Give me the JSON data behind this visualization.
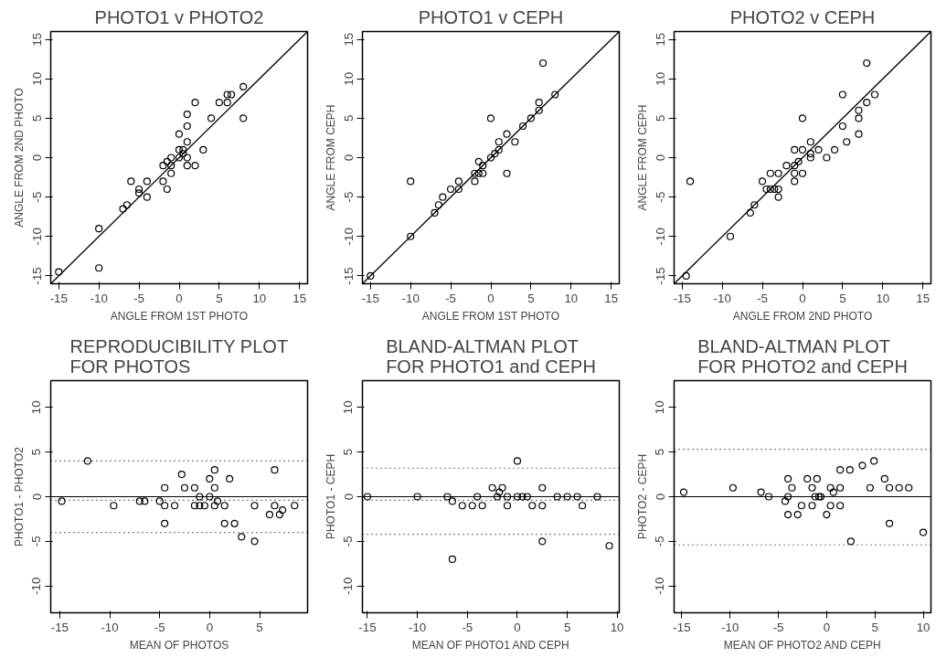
{
  "chart_data": [
    {
      "type": "scatter",
      "title": "PHOTO1 v PHOTO2",
      "xlabel": "ANGLE FROM 1ST PHOTO",
      "ylabel": "ANGLE FROM 2ND PHOTO",
      "xlim": [
        -16,
        16
      ],
      "ylim": [
        -16,
        16
      ],
      "xticks": [
        -15,
        -10,
        -5,
        0,
        5,
        10,
        15
      ],
      "yticks": [
        -15,
        -10,
        -5,
        0,
        5,
        10,
        15
      ],
      "series": [
        {
          "marker": "circle",
          "color": "#000000",
          "x": [
            -15,
            -10,
            -10,
            -7,
            -6.5,
            -6,
            -5,
            -5,
            -4,
            -4,
            -2,
            -2,
            -1.5,
            -1.5,
            -1,
            -1,
            -1,
            0,
            0,
            0,
            0.5,
            0.5,
            1,
            1,
            1,
            1,
            1,
            2,
            2,
            3,
            4,
            5,
            6,
            6,
            6.5,
            8,
            8
          ],
          "values": [
            -14.5,
            -9,
            -14,
            -6.5,
            -6,
            -3,
            -4,
            -4.5,
            -3,
            -5,
            -1,
            -3,
            -4,
            -0.5,
            0,
            -1,
            -2,
            3,
            1,
            0,
            1,
            0.5,
            5.5,
            4,
            2,
            0,
            -1,
            7,
            -1,
            1,
            5,
            7,
            8,
            7,
            8,
            9,
            5
          ]
        },
        {
          "type": "line",
          "marker": "none",
          "color": "#000000",
          "x": [
            -16,
            16
          ],
          "values": [
            -16,
            16
          ]
        }
      ]
    },
    {
      "type": "scatter",
      "title": "PHOTO1 v CEPH",
      "xlabel": "ANGLE FROM 1ST PHOTO",
      "ylabel": "ANGLE FROM CEPH",
      "xlim": [
        -16,
        16
      ],
      "ylim": [
        -16,
        16
      ],
      "xticks": [
        -15,
        -10,
        -5,
        0,
        5,
        10,
        15
      ],
      "yticks": [
        -15,
        -10,
        -5,
        0,
        5,
        10,
        15
      ],
      "series": [
        {
          "marker": "circle",
          "color": "#000000",
          "x": [
            -15,
            -10,
            -10,
            -7,
            -6.5,
            -6,
            -5,
            -4,
            -4,
            -2,
            -2,
            -1.5,
            -1.5,
            -1,
            -1,
            0,
            0,
            0.5,
            1,
            1,
            2,
            2,
            3,
            4,
            5,
            6,
            6,
            6.5,
            8
          ],
          "values": [
            -15,
            -3,
            -10,
            -7,
            -6,
            -5,
            -4,
            -3,
            -4,
            -2,
            -3,
            -0.5,
            -2,
            -2,
            -1,
            5,
            0,
            0.5,
            2,
            1,
            3,
            -2,
            2,
            4,
            5,
            6,
            7,
            12,
            8
          ]
        },
        {
          "type": "line",
          "marker": "none",
          "color": "#000000",
          "x": [
            -16,
            16
          ],
          "values": [
            -16,
            16
          ]
        }
      ]
    },
    {
      "type": "scatter",
      "title": "PHOTO2 v CEPH",
      "xlabel": "ANGLE FROM 2ND PHOTO",
      "ylabel": "ANGLE FROM CEPH",
      "xlim": [
        -16,
        16
      ],
      "ylim": [
        -16,
        16
      ],
      "xticks": [
        -15,
        -10,
        -5,
        0,
        5,
        10,
        15
      ],
      "yticks": [
        -15,
        -10,
        -5,
        0,
        5,
        10,
        15
      ],
      "series": [
        {
          "marker": "circle",
          "color": "#000000",
          "x": [
            -14.5,
            -14,
            -9,
            -6.5,
            -6,
            -5,
            -4.5,
            -4,
            -4,
            -3.5,
            -3,
            -3,
            -3,
            -2,
            -1,
            -1,
            -1,
            -1,
            -0.5,
            0,
            0,
            0,
            1,
            1,
            1,
            2,
            3,
            4,
            5,
            5,
            5.5,
            7,
            7,
            7,
            8,
            8,
            9
          ],
          "values": [
            -15,
            -3,
            -10,
            -7,
            -6,
            -3,
            -4,
            -4,
            -2,
            -4,
            -2,
            -4,
            -5,
            -1,
            1,
            -1,
            -2,
            -3,
            -0.5,
            5,
            1,
            -2,
            2,
            0.5,
            0,
            1,
            0,
            1,
            8,
            4,
            2,
            6,
            5,
            3,
            12,
            7,
            8
          ]
        },
        {
          "type": "line",
          "marker": "none",
          "color": "#000000",
          "x": [
            -16,
            16
          ],
          "values": [
            -16,
            16
          ]
        }
      ]
    },
    {
      "type": "scatter",
      "title": "REPRODUCIBILITY PLOT\nFOR PHOTOS",
      "xlabel": "MEAN OF PHOTOS",
      "ylabel": "PHOTO1 - PHOTO2",
      "xlim": [
        -15.9,
        9.8
      ],
      "ylim": [
        -13,
        13
      ],
      "xticks": [
        -15,
        -10,
        -5,
        0,
        5
      ],
      "yticks": [
        -10,
        -5,
        0,
        5,
        10
      ],
      "marker": "circle",
      "series": [
        {
          "color": "#000000",
          "x": [
            -14.8,
            -12.2,
            -9.6,
            -7,
            -6.5,
            -5,
            -4.5,
            -4.5,
            -4.5,
            -3.5,
            -2.8,
            -2.5,
            -1.5,
            -1.5,
            -1,
            -1,
            -0.5,
            0,
            0,
            0.5,
            0.5,
            0.5,
            0.8,
            1.5,
            1.5,
            2,
            2.5,
            3.2,
            4.5,
            4.5,
            6,
            6.5,
            6.5,
            7,
            7.3,
            8.5
          ],
          "values": [
            -0.5,
            4,
            -1,
            -0.5,
            -0.5,
            -0.5,
            1,
            -1,
            -3,
            -1,
            2.5,
            1,
            1,
            -1,
            0,
            -1,
            -1,
            2,
            0,
            3,
            1,
            -1,
            -0.5,
            -1,
            -3,
            2,
            -3,
            -4.5,
            -1,
            -5,
            -2,
            3,
            -1,
            -2,
            -1.5,
            -1
          ]
        }
      ],
      "ref_lines": [
        {
          "axis": "y",
          "value": 0,
          "line_style": "solid",
          "color": "#000000"
        },
        {
          "axis": "y",
          "value": 4,
          "line_style": "dotted",
          "color": "#000000"
        },
        {
          "axis": "y",
          "value": -0.4,
          "line_style": "dotted",
          "color": "#000000"
        },
        {
          "axis": "y",
          "value": -4,
          "line_style": "dotted",
          "color": "#000000"
        }
      ]
    },
    {
      "type": "scatter",
      "title": "BLAND-ALTMAN PLOT\nFOR PHOTO1 and CEPH",
      "xlabel": "MEAN OF PHOTO1 AND CEPH",
      "ylabel": "PHOTO1 - CEPH",
      "xlim": [
        -15.5,
        10.2
      ],
      "ylim": [
        -13,
        13
      ],
      "xticks": [
        -15,
        -10,
        -5,
        0,
        5,
        10
      ],
      "yticks": [
        -10,
        -5,
        0,
        5,
        10
      ],
      "marker": "circle",
      "series": [
        {
          "color": "#000000",
          "x": [
            -15,
            -10,
            -7,
            -6.5,
            -6.5,
            -5.5,
            -4.5,
            -4,
            -3.5,
            -2.5,
            -2,
            -1.8,
            -1.5,
            -1,
            -1,
            0,
            0,
            0.5,
            1,
            1.5,
            2.5,
            2.5,
            2.5,
            4,
            5,
            6,
            6.5,
            8,
            9.2
          ],
          "values": [
            0,
            0,
            0,
            -0.5,
            -7,
            -1,
            -1,
            0,
            -1,
            1,
            0,
            0.5,
            1,
            0,
            -1,
            4,
            0,
            0,
            0,
            -1,
            1,
            -1,
            -5,
            0,
            0,
            0,
            -1,
            0,
            -5.5
          ]
        }
      ],
      "ref_lines": [
        {
          "axis": "y",
          "value": 0,
          "line_style": "solid",
          "color": "#000000"
        },
        {
          "axis": "y",
          "value": 3.2,
          "line_style": "dotted",
          "color": "#000000"
        },
        {
          "axis": "y",
          "value": -0.4,
          "line_style": "dotted",
          "color": "#000000"
        },
        {
          "axis": "y",
          "value": -4.2,
          "line_style": "dotted",
          "color": "#000000"
        }
      ]
    },
    {
      "type": "scatter",
      "title": "BLAND-ALTMAN PLOT\nFOR PHOTO2 and CEPH",
      "xlabel": "MEAN OF PHOTO2 AND CEPH",
      "ylabel": "PHOTO2 - CEPH",
      "xlim": [
        -15.8,
        10.8
      ],
      "ylim": [
        -13,
        13
      ],
      "xticks": [
        -15,
        -10,
        -5,
        0,
        5,
        10
      ],
      "yticks": [
        -10,
        -5,
        0,
        5,
        10
      ],
      "marker": "circle",
      "series": [
        {
          "color": "#000000",
          "x": [
            -14.8,
            -9.7,
            -6.8,
            -6,
            -4.3,
            -4,
            -4,
            -4,
            -3.6,
            -3,
            -2.6,
            -2,
            -1.5,
            -1.5,
            -1.2,
            -1,
            -0.8,
            -0.6,
            0,
            0.4,
            0.4,
            0.7,
            1.4,
            1.4,
            1.4,
            2.4,
            2.5,
            3.7,
            4.5,
            4.9,
            6,
            6.5,
            6.5,
            7.5,
            8.5,
            10
          ],
          "values": [
            0.5,
            1,
            0.5,
            0,
            -0.5,
            2,
            0,
            -2,
            1,
            -2,
            -1,
            2,
            1,
            -1,
            0,
            2,
            0,
            0,
            -2,
            1,
            -1,
            0.5,
            3,
            1,
            -1,
            3,
            -5,
            3.5,
            1,
            4,
            2,
            1,
            -3,
            1,
            1,
            -4
          ]
        }
      ],
      "ref_lines": [
        {
          "axis": "y",
          "value": 0,
          "line_style": "solid",
          "color": "#000000"
        },
        {
          "axis": "y",
          "value": 5.3,
          "line_style": "dotted",
          "color": "#000000"
        },
        {
          "axis": "y",
          "value": -5.4,
          "line_style": "dotted",
          "color": "#000000"
        }
      ]
    }
  ]
}
